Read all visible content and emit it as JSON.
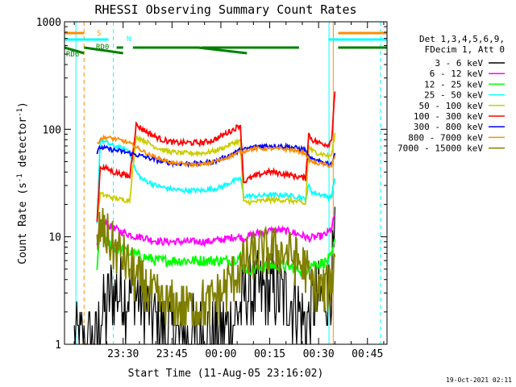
{
  "chart_data": {
    "type": "line",
    "title": "RHESSI Observing Summary Count Rates",
    "xlabel": "Start Time (11-Aug-05 23:16:02)",
    "ylabel_main": "Count Rate (s",
    "ylabel_sup1": "-1",
    "ylabel_mid": " detector",
    "ylabel_sup2": "-1",
    "ylabel_end": ")",
    "yscale": "log",
    "ylim": [
      1,
      1000
    ],
    "xlim_minutes": [
      -4,
      95
    ],
    "x_ticks": [
      {
        "m": 14,
        "label": "23:30"
      },
      {
        "m": 29,
        "label": "23:45"
      },
      {
        "m": 44,
        "label": "00:00"
      },
      {
        "m": 59,
        "label": "00:15"
      },
      {
        "m": 74,
        "label": "00:30"
      },
      {
        "m": 89,
        "label": "00:45"
      }
    ],
    "y_ticks": [
      {
        "v": 1,
        "label": "1"
      },
      {
        "v": 10,
        "label": "10"
      },
      {
        "v": 100,
        "label": "100"
      },
      {
        "v": 1000,
        "label": "1000"
      }
    ],
    "legend_header": [
      "Det 1,3,4,5,6,9,",
      "FDecim 1, Att 0"
    ],
    "series": [
      {
        "name": "3 - 6 keV",
        "color": "#000000",
        "x": [
          -1,
          6,
          7,
          9,
          10,
          12,
          14,
          16,
          18,
          20,
          22,
          24,
          26,
          28,
          30,
          32,
          34,
          36,
          38,
          40,
          42,
          44,
          46,
          48,
          50,
          51,
          52,
          54,
          56,
          58,
          60,
          62,
          64,
          66,
          68,
          70,
          71,
          72,
          74,
          76,
          77,
          78,
          79
        ],
        "y": [
          1,
          1,
          2,
          2,
          3,
          3,
          3,
          3,
          3,
          2.5,
          2,
          1.6,
          1.4,
          1.3,
          1.2,
          1.2,
          1.2,
          1.2,
          1.2,
          1.2,
          1.3,
          1.4,
          1.5,
          1.7,
          2.2,
          2.6,
          3,
          3,
          3,
          3,
          3,
          3,
          2.8,
          2.5,
          2,
          1.6,
          1.6,
          2.2,
          2.6,
          2.8,
          3,
          4,
          8
        ]
      },
      {
        "name": "6 - 12 keV",
        "color": "#ff00ff",
        "x": [
          6,
          7,
          9,
          11,
          14,
          16,
          18,
          20,
          22,
          24,
          26,
          28,
          30,
          32,
          34,
          36,
          38,
          40,
          42,
          44,
          46,
          48,
          50,
          51,
          52,
          54,
          56,
          58,
          60,
          62,
          64,
          66,
          68,
          70,
          71,
          72,
          74,
          76,
          77,
          78,
          79
        ],
        "y": [
          8,
          14,
          13,
          12,
          11,
          10.5,
          10,
          10,
          9.5,
          9.2,
          9,
          9,
          9,
          9,
          9,
          9,
          9,
          9,
          9.2,
          9.4,
          9.6,
          10,
          10,
          9.5,
          10,
          10.5,
          11,
          11.2,
          11.5,
          11.5,
          11.3,
          11,
          10.5,
          10,
          9.6,
          9.8,
          10,
          10.4,
          11,
          12,
          16
        ]
      },
      {
        "name": "12 - 25 keV",
        "color": "#00ff00",
        "x": [
          6,
          7,
          9,
          11,
          14,
          16,
          18,
          20,
          22,
          24,
          26,
          28,
          30,
          32,
          34,
          36,
          38,
          40,
          42,
          44,
          46,
          48,
          50,
          51,
          52,
          54,
          56,
          58,
          60,
          62,
          64,
          66,
          68,
          70,
          71,
          72,
          74,
          76,
          77,
          78,
          79
        ],
        "y": [
          5,
          11,
          9,
          8,
          7.5,
          7,
          6.8,
          6.5,
          6.3,
          6,
          6,
          6,
          6,
          6,
          6,
          6,
          6,
          6,
          6,
          6,
          6,
          6.2,
          6.5,
          5.2,
          5,
          5,
          5.2,
          5.4,
          5.4,
          5.4,
          5.3,
          5.2,
          5,
          4.8,
          5.5,
          5.6,
          5.6,
          5.8,
          6,
          6.5,
          9
        ]
      },
      {
        "name": "25 - 50 keV",
        "color": "#00ffff",
        "x": [
          6,
          7,
          9,
          11,
          14,
          16,
          18,
          20,
          22,
          24,
          26,
          28,
          30,
          32,
          34,
          36,
          38,
          40,
          42,
          44,
          46,
          48,
          50,
          51,
          52,
          54,
          56,
          58,
          60,
          62,
          64,
          66,
          68,
          70,
          71,
          72,
          74,
          76,
          77,
          78,
          79
        ],
        "y": [
          14,
          80,
          75,
          70,
          66,
          63,
          40,
          34,
          32,
          30,
          29,
          28,
          27.5,
          27,
          27,
          27,
          27,
          27.5,
          28,
          29,
          31,
          33,
          35,
          24,
          24,
          24,
          24,
          24.5,
          24.5,
          24.5,
          24.3,
          24,
          23.6,
          22,
          30,
          26,
          25,
          24,
          23.5,
          24,
          35
        ]
      },
      {
        "name": "50 - 100 keV",
        "color": "#cccc00",
        "x": [
          6,
          7,
          9,
          11,
          14,
          16,
          18,
          20,
          22,
          24,
          26,
          28,
          30,
          32,
          34,
          36,
          38,
          40,
          42,
          44,
          46,
          48,
          50,
          51,
          52,
          54,
          56,
          58,
          60,
          62,
          64,
          66,
          68,
          70,
          71,
          72,
          74,
          76,
          77,
          78,
          79
        ],
        "y": [
          14,
          25,
          24,
          23,
          22,
          22,
          85,
          80,
          74,
          68,
          65,
          62,
          61,
          60,
          60,
          60,
          60,
          61,
          63,
          66,
          70,
          75,
          78,
          21,
          21,
          21,
          21.5,
          22,
          22,
          22,
          21.8,
          21.5,
          21,
          20,
          70,
          63,
          60,
          58,
          56,
          58,
          90
        ]
      },
      {
        "name": "100 - 300 keV",
        "color": "#ff0000",
        "x": [
          6,
          7,
          9,
          11,
          14,
          16,
          18,
          20,
          22,
          24,
          26,
          28,
          30,
          32,
          34,
          36,
          38,
          40,
          42,
          44,
          46,
          48,
          50,
          51,
          52,
          54,
          56,
          58,
          60,
          62,
          64,
          66,
          68,
          70,
          71,
          72,
          74,
          76,
          77,
          78,
          79
        ],
        "y": [
          14,
          45,
          43,
          40,
          38,
          36,
          110,
          100,
          92,
          85,
          80,
          77,
          75,
          75,
          75,
          75,
          75,
          77,
          80,
          86,
          93,
          100,
          110,
          32,
          34,
          36,
          38,
          40,
          40,
          39,
          38,
          37,
          36,
          35,
          90,
          80,
          75,
          73,
          72,
          80,
          230
        ]
      },
      {
        "name": "300 - 800 keV",
        "color": "#0000ff",
        "x": [
          6,
          7,
          9,
          11,
          14,
          16,
          18,
          20,
          22,
          24,
          26,
          28,
          30,
          32,
          34,
          36,
          38,
          40,
          42,
          44,
          46,
          48,
          50,
          51,
          52,
          54,
          56,
          58,
          60,
          62,
          64,
          66,
          68,
          70,
          71,
          72,
          74,
          76,
          77,
          78,
          79
        ],
        "y": [
          60,
          68,
          66,
          64,
          62,
          60,
          58,
          56,
          54,
          52,
          50,
          49,
          48,
          48,
          48,
          48,
          48,
          49,
          50,
          53,
          56,
          60,
          64,
          64,
          66,
          68,
          70,
          70,
          70,
          70,
          69,
          68,
          66,
          64,
          55,
          52,
          50,
          49,
          48,
          47,
          60
        ]
      },
      {
        "name": "800 - 7000 keV",
        "color": "#ff8c00",
        "x": [
          6,
          7,
          9,
          11,
          14,
          16,
          18,
          20,
          22,
          24,
          26,
          28,
          30,
          32,
          34,
          36,
          38,
          40,
          42,
          44,
          46,
          48,
          50,
          51,
          52,
          54,
          56,
          58,
          60,
          62,
          64,
          66,
          68,
          70,
          71,
          72,
          74,
          76,
          77,
          78,
          79
        ],
        "y": [
          72,
          82,
          84,
          82,
          78,
          74,
          68,
          63,
          58,
          55,
          52,
          50,
          48,
          48,
          47,
          47,
          47,
          48,
          50,
          52,
          55,
          58,
          62,
          62,
          64,
          66,
          66,
          66,
          66,
          66,
          65,
          64,
          62,
          60,
          52,
          50,
          48,
          47,
          46,
          46,
          55
        ]
      },
      {
        "name": "7000 - 15000 keV",
        "color": "#808000",
        "x": [
          6,
          7,
          9,
          11,
          14,
          16,
          18,
          20,
          22,
          24,
          26,
          28,
          30,
          32,
          34,
          36,
          38,
          40,
          42,
          44,
          46,
          48,
          50,
          51,
          52,
          54,
          56,
          58,
          60,
          62,
          64,
          66,
          68,
          70,
          71,
          72,
          74,
          76,
          77,
          78,
          79
        ],
        "y": [
          8,
          12,
          10,
          8,
          6.5,
          5,
          4.2,
          3.5,
          3,
          2.6,
          2.4,
          2.3,
          2.2,
          2.2,
          2.2,
          2.2,
          2.3,
          2.4,
          2.6,
          3,
          3.6,
          4.3,
          5,
          5.5,
          6,
          6.5,
          7,
          7.2,
          7.4,
          7.2,
          7,
          6.5,
          5.8,
          5,
          4,
          3.5,
          3.2,
          3.2,
          3.3,
          4,
          6
        ]
      }
    ],
    "flag_bars": [
      {
        "name": "S",
        "color": "#ff8c00",
        "row": 0,
        "segments": [
          [
            -4,
            2
          ],
          [
            80,
            95
          ]
        ]
      },
      {
        "name": "N",
        "color": "#00ffff",
        "row": 1,
        "segments": [
          [
            -4,
            9.5
          ],
          [
            77,
            95
          ]
        ]
      },
      {
        "name": "RD0",
        "color": "#008000",
        "row": 2,
        "segments": [
          [
            12,
            14
          ],
          [
            17,
            37.5
          ],
          [
            38,
            68
          ],
          [
            80,
            95
          ]
        ]
      },
      {
        "name": "RD6",
        "color": "#008000",
        "row": 3,
        "segments": [
          [
            -4,
            2
          ],
          [
            2,
            14
          ],
          [
            37,
            52
          ]
        ]
      }
    ],
    "vlines": [
      {
        "m": 2,
        "color": "#ff8c00",
        "dash": true
      },
      {
        "m": 11,
        "color": "#00ffff",
        "dash": true
      },
      {
        "m": -0.5,
        "color": "#00ffff",
        "dash": false
      },
      {
        "m": 78.5,
        "color": "#ff8c00",
        "dash": false
      },
      {
        "m": 77.2,
        "color": "#00ffff",
        "dash": false
      },
      {
        "m": 93,
        "color": "#00ffff",
        "dash": true
      }
    ]
  },
  "footer_date": "19-Oct-2021 02:11"
}
